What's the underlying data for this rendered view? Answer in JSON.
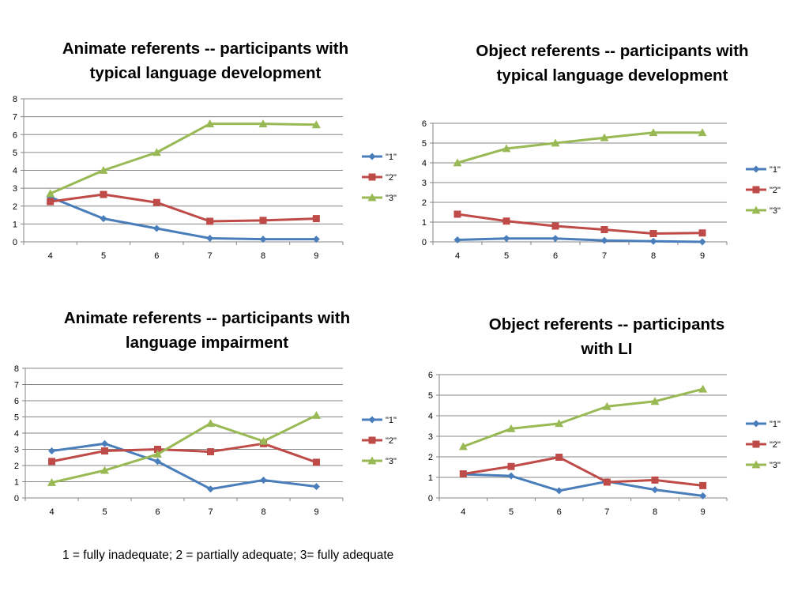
{
  "chart_data": [
    {
      "type": "line",
      "title": "Animate referents -- participants with\ntypical language development",
      "categories": [
        "4",
        "5",
        "6",
        "7",
        "8",
        "9"
      ],
      "ylim": [
        0,
        8
      ],
      "yticks": [
        "0",
        "1",
        "2",
        "3",
        "4",
        "5",
        "6",
        "7",
        "8"
      ],
      "grid": true,
      "legend": "right",
      "series": [
        {
          "name": "\"1\"",
          "color": "#4a7ebb",
          "marker": "diamond",
          "values": [
            2.5,
            1.3,
            0.75,
            0.2,
            0.15,
            0.15
          ]
        },
        {
          "name": "\"2\"",
          "color": "#be4b48",
          "marker": "square",
          "values": [
            2.25,
            2.65,
            2.2,
            1.15,
            1.2,
            1.3
          ]
        },
        {
          "name": "\"3\"",
          "color": "#98b954",
          "marker": "triangle",
          "values": [
            2.7,
            4.0,
            5.0,
            6.6,
            6.6,
            6.55
          ]
        }
      ]
    },
    {
      "type": "line",
      "title": "Object referents -- participants with\ntypical language development",
      "categories": [
        "4",
        "5",
        "6",
        "7",
        "8",
        "9"
      ],
      "ylim": [
        0,
        6
      ],
      "yticks": [
        "0",
        "1",
        "2",
        "3",
        "4",
        "5",
        "6"
      ],
      "grid": true,
      "legend": "right",
      "series": [
        {
          "name": "\"1\"",
          "color": "#4a7ebb",
          "marker": "diamond",
          "values": [
            0.1,
            0.17,
            0.17,
            0.07,
            0.03,
            0.0
          ]
        },
        {
          "name": "\"2\"",
          "color": "#be4b48",
          "marker": "square",
          "values": [
            1.4,
            1.05,
            0.8,
            0.62,
            0.42,
            0.45
          ]
        },
        {
          "name": "\"3\"",
          "color": "#98b954",
          "marker": "triangle",
          "values": [
            4.0,
            4.72,
            5.0,
            5.27,
            5.53,
            5.53
          ]
        }
      ]
    },
    {
      "type": "line",
      "title": "Animate referents -- participants with\nlanguage impairment",
      "categories": [
        "4",
        "5",
        "6",
        "7",
        "8",
        "9"
      ],
      "ylim": [
        0,
        8
      ],
      "yticks": [
        "0",
        "1",
        "2",
        "3",
        "4",
        "5",
        "6",
        "7",
        "8"
      ],
      "grid": true,
      "legend": "right",
      "series": [
        {
          "name": "\"1\"",
          "color": "#4a7ebb",
          "marker": "diamond",
          "values": [
            2.9,
            3.35,
            2.25,
            0.55,
            1.1,
            0.7
          ]
        },
        {
          "name": "\"2\"",
          "color": "#be4b48",
          "marker": "square",
          "values": [
            2.25,
            2.9,
            3.0,
            2.85,
            3.35,
            2.2
          ]
        },
        {
          "name": "\"3\"",
          "color": "#98b954",
          "marker": "triangle",
          "values": [
            0.95,
            1.7,
            2.7,
            4.6,
            3.5,
            5.1
          ]
        }
      ]
    },
    {
      "type": "line",
      "title": "Object referents -- participants\nwith LI",
      "categories": [
        "4",
        "5",
        "6",
        "7",
        "8",
        "9"
      ],
      "ylim": [
        0,
        6
      ],
      "yticks": [
        "0",
        "1",
        "2",
        "3",
        "4",
        "5",
        "6"
      ],
      "grid": true,
      "legend": "right",
      "series": [
        {
          "name": "\"1\"",
          "color": "#4a7ebb",
          "marker": "diamond",
          "values": [
            1.15,
            1.07,
            0.35,
            0.8,
            0.4,
            0.1
          ]
        },
        {
          "name": "\"2\"",
          "color": "#be4b48",
          "marker": "square",
          "values": [
            1.17,
            1.53,
            1.98,
            0.77,
            0.87,
            0.6
          ]
        },
        {
          "name": "\"3\"",
          "color": "#98b954",
          "marker": "triangle",
          "values": [
            2.5,
            3.37,
            3.62,
            4.45,
            4.7,
            5.3
          ]
        }
      ]
    }
  ],
  "footnote": "1 = fully inadequate; 2 = partially adequate; 3= fully adequate"
}
